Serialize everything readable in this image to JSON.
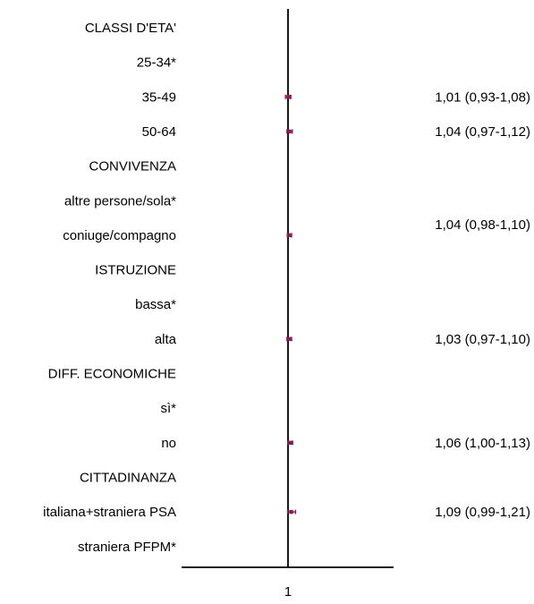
{
  "chart_data": {
    "type": "forest",
    "reference_value": 1,
    "x_tick_labels": [
      "1"
    ],
    "mark_color": "#8b1a5a",
    "axis_color": "#000000",
    "rows": [
      {
        "label": "CLASSI D'ETA'",
        "kind": "group"
      },
      {
        "label": "25-34*",
        "kind": "reference"
      },
      {
        "label": "35-49",
        "kind": "estimate",
        "estimate": 1.01,
        "low": 0.93,
        "high": 1.08,
        "ci_text": "1,01 (0,93-1,08)"
      },
      {
        "label": "50-64",
        "kind": "estimate",
        "estimate": 1.04,
        "low": 0.97,
        "high": 1.12,
        "ci_text": "1,04 (0,97-1,12)"
      },
      {
        "label": "CONVIVENZA",
        "kind": "group"
      },
      {
        "label": "altre persone/sola*",
        "kind": "reference"
      },
      {
        "label": "coniuge/compagno",
        "kind": "estimate",
        "estimate": 1.04,
        "low": 0.98,
        "high": 1.1,
        "ci_text": "1,04 (0,98-1,10)"
      },
      {
        "label": "ISTRUZIONE",
        "kind": "group"
      },
      {
        "label": "bassa*",
        "kind": "reference"
      },
      {
        "label": "alta",
        "kind": "estimate",
        "estimate": 1.03,
        "low": 0.97,
        "high": 1.1,
        "ci_text": "1,03 (0,97-1,10)"
      },
      {
        "label": "DIFF. ECONOMICHE",
        "kind": "group"
      },
      {
        "label": "sì*",
        "kind": "reference"
      },
      {
        "label": "no",
        "kind": "estimate",
        "estimate": 1.06,
        "low": 1.0,
        "high": 1.13,
        "ci_text": "1,06 (1,00-1,13)"
      },
      {
        "label": "CITTADINANZA",
        "kind": "group"
      },
      {
        "label": "italiana+straniera PSA",
        "kind": "estimate",
        "estimate": 1.09,
        "low": 0.99,
        "high": 1.21,
        "ci_text": "1,09 (0,99-1,21)"
      },
      {
        "label": "straniera PFPM*",
        "kind": "reference"
      }
    ]
  }
}
